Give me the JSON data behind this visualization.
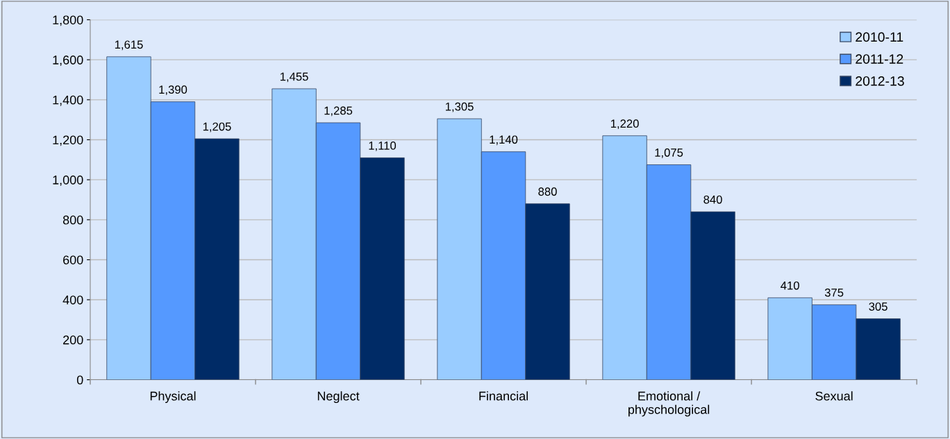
{
  "chart_data": {
    "type": "bar",
    "categories": [
      "Physical",
      "Neglect",
      "Financial",
      "Emotional /\nphyschological",
      "Sexual"
    ],
    "series": [
      {
        "name": "2010-11",
        "color": "#99ccff",
        "values": [
          1615,
          1455,
          1305,
          1220,
          410
        ],
        "value_labels": [
          "1,615",
          "1,455",
          "1,305",
          "1,220",
          "410"
        ]
      },
      {
        "name": "2011-12",
        "color": "#5599ff",
        "values": [
          1390,
          1285,
          1140,
          1075,
          375
        ],
        "value_labels": [
          "1,390",
          "1,285",
          "1,140",
          "1,075",
          "375"
        ]
      },
      {
        "name": "2012-13",
        "color": "#002b66",
        "values": [
          1205,
          1110,
          880,
          840,
          305
        ],
        "value_labels": [
          "1,205",
          "1,110",
          "880",
          "840",
          "305"
        ]
      }
    ],
    "ylim": [
      0,
      1800
    ],
    "yticks": [
      {
        "value": 0,
        "label": "0"
      },
      {
        "value": 200,
        "label": "200"
      },
      {
        "value": 400,
        "label": "400"
      },
      {
        "value": 600,
        "label": "600"
      },
      {
        "value": 800,
        "label": "800"
      },
      {
        "value": 1000,
        "label": "1,000"
      },
      {
        "value": 1200,
        "label": "1,200"
      },
      {
        "value": 1400,
        "label": "1,400"
      },
      {
        "value": 1600,
        "label": "1,600"
      },
      {
        "value": 1800,
        "label": "1,800"
      }
    ],
    "grid": "y",
    "legend": "top right"
  }
}
